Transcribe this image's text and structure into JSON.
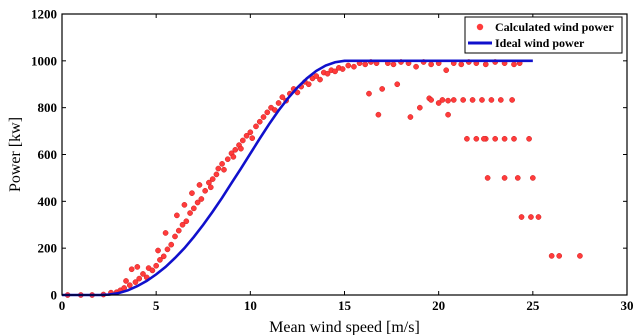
{
  "chart_data": {
    "type": "scatter",
    "xlabel": "Mean wind speed [m/s]",
    "ylabel": "Power [kw]",
    "xlim": [
      0,
      30
    ],
    "ylim": [
      0,
      1200
    ],
    "xticks": [
      0,
      5,
      10,
      15,
      20,
      25,
      30
    ],
    "yticks": [
      0,
      200,
      400,
      600,
      800,
      1000,
      1200
    ],
    "grid": false,
    "legend_position": "top-right",
    "colors": {
      "scatter": "#ff3b3b",
      "line": "#1010cc"
    },
    "series": [
      {
        "name": "Calculated wind power",
        "kind": "scatter",
        "points": [
          [
            0.3,
            0
          ],
          [
            1.0,
            0
          ],
          [
            1.6,
            0
          ],
          [
            2.2,
            2
          ],
          [
            2.6,
            10
          ],
          [
            2.9,
            12
          ],
          [
            3.1,
            20
          ],
          [
            3.3,
            30
          ],
          [
            3.4,
            60
          ],
          [
            3.6,
            42
          ],
          [
            3.7,
            110
          ],
          [
            3.9,
            55
          ],
          [
            4.0,
            120
          ],
          [
            4.1,
            70
          ],
          [
            4.3,
            90
          ],
          [
            4.5,
            75
          ],
          [
            4.6,
            115
          ],
          [
            4.8,
            105
          ],
          [
            5.0,
            125
          ],
          [
            5.1,
            190
          ],
          [
            5.2,
            150
          ],
          [
            5.4,
            165
          ],
          [
            5.5,
            265
          ],
          [
            5.6,
            195
          ],
          [
            5.8,
            215
          ],
          [
            6.0,
            250
          ],
          [
            6.1,
            340
          ],
          [
            6.2,
            275
          ],
          [
            6.4,
            300
          ],
          [
            6.5,
            385
          ],
          [
            6.6,
            315
          ],
          [
            6.8,
            350
          ],
          [
            6.9,
            435
          ],
          [
            7.0,
            370
          ],
          [
            7.2,
            395
          ],
          [
            7.3,
            470
          ],
          [
            7.4,
            410
          ],
          [
            7.6,
            445
          ],
          [
            7.8,
            480
          ],
          [
            7.9,
            460
          ],
          [
            8.0,
            495
          ],
          [
            8.2,
            515
          ],
          [
            8.3,
            540
          ],
          [
            8.5,
            560
          ],
          [
            8.6,
            535
          ],
          [
            8.8,
            580
          ],
          [
            9.0,
            605
          ],
          [
            9.1,
            590
          ],
          [
            9.2,
            620
          ],
          [
            9.4,
            640
          ],
          [
            9.5,
            625
          ],
          [
            9.6,
            660
          ],
          [
            9.8,
            680
          ],
          [
            10.0,
            695
          ],
          [
            10.1,
            670
          ],
          [
            10.3,
            720
          ],
          [
            10.5,
            740
          ],
          [
            10.7,
            760
          ],
          [
            10.9,
            780
          ],
          [
            11.1,
            800
          ],
          [
            11.3,
            790
          ],
          [
            11.5,
            820
          ],
          [
            11.7,
            845
          ],
          [
            11.9,
            830
          ],
          [
            12.1,
            860
          ],
          [
            12.3,
            880
          ],
          [
            12.5,
            865
          ],
          [
            12.7,
            890
          ],
          [
            12.9,
            910
          ],
          [
            13.1,
            900
          ],
          [
            13.3,
            925
          ],
          [
            13.5,
            935
          ],
          [
            13.7,
            920
          ],
          [
            13.9,
            950
          ],
          [
            14.1,
            945
          ],
          [
            14.3,
            960
          ],
          [
            14.5,
            955
          ],
          [
            14.7,
            970
          ],
          [
            14.9,
            965
          ],
          [
            15.2,
            980
          ],
          [
            15.5,
            975
          ],
          [
            15.8,
            990
          ],
          [
            16.1,
            985
          ],
          [
            16.4,
            995
          ],
          [
            16.7,
            990
          ],
          [
            16.3,
            860
          ],
          [
            17.0,
            880
          ],
          [
            17.3,
            990
          ],
          [
            17.6,
            985
          ],
          [
            17.8,
            900
          ],
          [
            18.0,
            995
          ],
          [
            18.4,
            990
          ],
          [
            18.8,
            975
          ],
          [
            19.2,
            995
          ],
          [
            19.6,
            985
          ],
          [
            20.0,
            990
          ],
          [
            20.4,
            960
          ],
          [
            20.8,
            990
          ],
          [
            21.2,
            985
          ],
          [
            21.6,
            995
          ],
          [
            22.0,
            990
          ],
          [
            22.5,
            985
          ],
          [
            23.0,
            995
          ],
          [
            23.5,
            990
          ],
          [
            24.0,
            985
          ],
          [
            24.3,
            990
          ],
          [
            16.8,
            770
          ],
          [
            18.5,
            760
          ],
          [
            19.0,
            800
          ],
          [
            19.5,
            840
          ],
          [
            20.0,
            820
          ],
          [
            20.5,
            830
          ],
          [
            19.6,
            833
          ],
          [
            20.2,
            833
          ],
          [
            20.8,
            833
          ],
          [
            21.3,
            833
          ],
          [
            21.8,
            833
          ],
          [
            22.3,
            833
          ],
          [
            22.8,
            833
          ],
          [
            23.3,
            833
          ],
          [
            23.9,
            833
          ],
          [
            20.5,
            770
          ],
          [
            21.5,
            667
          ],
          [
            22.0,
            667
          ],
          [
            22.5,
            667
          ],
          [
            23.0,
            667
          ],
          [
            23.5,
            667
          ],
          [
            24.0,
            667
          ],
          [
            24.8,
            667
          ],
          [
            22.4,
            667
          ],
          [
            22.6,
            500
          ],
          [
            23.5,
            500
          ],
          [
            24.2,
            500
          ],
          [
            25.0,
            500
          ],
          [
            24.4,
            333
          ],
          [
            24.9,
            333
          ],
          [
            25.3,
            333
          ],
          [
            26.0,
            167
          ],
          [
            26.4,
            167
          ],
          [
            27.5,
            167
          ]
        ]
      },
      {
        "name": "Ideal wind power",
        "kind": "line",
        "points": [
          [
            0,
            0
          ],
          [
            1,
            0
          ],
          [
            2,
            0
          ],
          [
            2.5,
            2
          ],
          [
            3,
            8
          ],
          [
            3.5,
            20
          ],
          [
            4,
            38
          ],
          [
            4.5,
            60
          ],
          [
            5,
            88
          ],
          [
            5.5,
            120
          ],
          [
            6,
            158
          ],
          [
            6.5,
            200
          ],
          [
            7,
            248
          ],
          [
            7.5,
            300
          ],
          [
            8,
            356
          ],
          [
            8.5,
            415
          ],
          [
            9,
            478
          ],
          [
            9.5,
            540
          ],
          [
            10,
            604
          ],
          [
            10.5,
            668
          ],
          [
            11,
            730
          ],
          [
            11.5,
            788
          ],
          [
            12,
            840
          ],
          [
            12.5,
            886
          ],
          [
            13,
            925
          ],
          [
            13.5,
            957
          ],
          [
            14,
            980
          ],
          [
            14.5,
            994
          ],
          [
            15,
            1000
          ],
          [
            20,
            1000
          ],
          [
            25,
            1000
          ]
        ]
      }
    ]
  }
}
